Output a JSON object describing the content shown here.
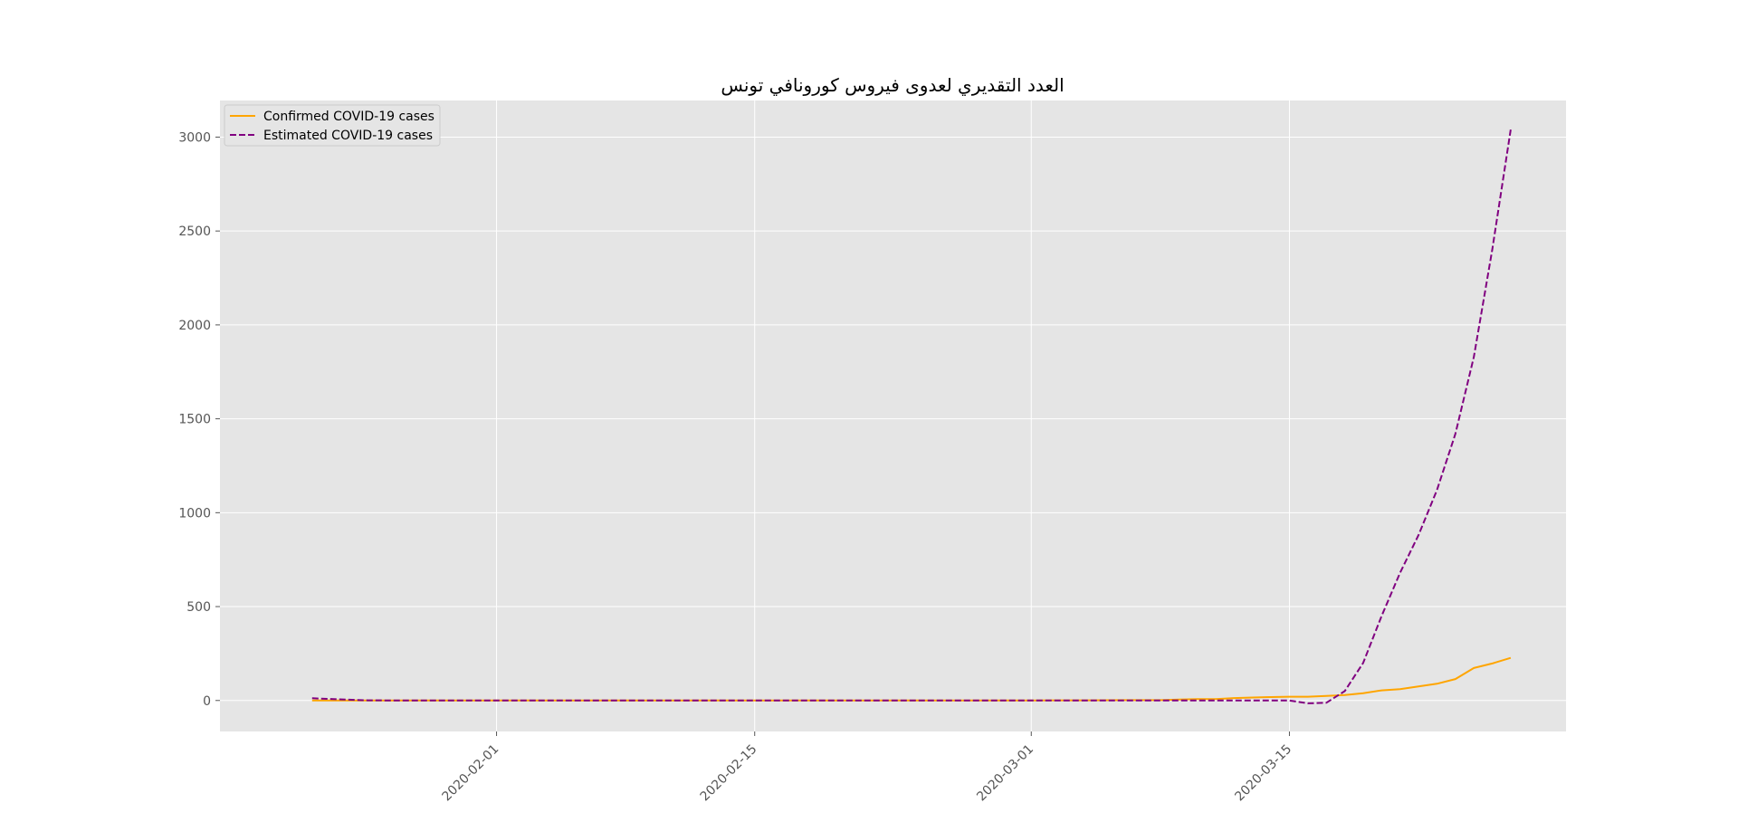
{
  "chart_data": {
    "type": "line",
    "title": "العدد التقديري لعدوى فيروس كورونافي تونس",
    "xlabel": "",
    "ylabel": "",
    "x_range": [
      "2020-01-17",
      "2020-03-30"
    ],
    "ylim": [
      -165,
      3195
    ],
    "x_ticks": [
      "2020-02-01",
      "2020-02-15",
      "2020-03-01",
      "2020-03-15"
    ],
    "y_ticks": [
      0,
      500,
      1000,
      1500,
      2000,
      2500,
      3000
    ],
    "grid": true,
    "legend_position": "top-left",
    "background": "#e5e5e5",
    "series": [
      {
        "name": "Confirmed COVID-19 cases",
        "color": "#ffa500",
        "dash": "solid",
        "points": [
          [
            "2020-01-22",
            0
          ],
          [
            "2020-02-01",
            0
          ],
          [
            "2020-02-15",
            0
          ],
          [
            "2020-03-01",
            0
          ],
          [
            "2020-03-02",
            1
          ],
          [
            "2020-03-04",
            1
          ],
          [
            "2020-03-06",
            2
          ],
          [
            "2020-03-08",
            2
          ],
          [
            "2020-03-09",
            5
          ],
          [
            "2020-03-10",
            7
          ],
          [
            "2020-03-11",
            7
          ],
          [
            "2020-03-12",
            13
          ],
          [
            "2020-03-13",
            16
          ],
          [
            "2020-03-14",
            18
          ],
          [
            "2020-03-15",
            20
          ],
          [
            "2020-03-16",
            20
          ],
          [
            "2020-03-17",
            24
          ],
          [
            "2020-03-18",
            29
          ],
          [
            "2020-03-19",
            39
          ],
          [
            "2020-03-20",
            54
          ],
          [
            "2020-03-21",
            60
          ],
          [
            "2020-03-22",
            75
          ],
          [
            "2020-03-23",
            89
          ],
          [
            "2020-03-24",
            114
          ],
          [
            "2020-03-25",
            173
          ],
          [
            "2020-03-26",
            197
          ],
          [
            "2020-03-27",
            227
          ]
        ]
      },
      {
        "name": "Estimated COVID-19 cases",
        "color": "#800080",
        "dash": "dashed",
        "points": [
          [
            "2020-01-22",
            12
          ],
          [
            "2020-01-23",
            8
          ],
          [
            "2020-01-24",
            4
          ],
          [
            "2020-01-25",
            1
          ],
          [
            "2020-01-27",
            0
          ],
          [
            "2020-02-01",
            0
          ],
          [
            "2020-02-15",
            0
          ],
          [
            "2020-03-01",
            0
          ],
          [
            "2020-03-10",
            0
          ],
          [
            "2020-03-15",
            0
          ],
          [
            "2020-03-16",
            -15
          ],
          [
            "2020-03-17",
            -12
          ],
          [
            "2020-03-18",
            50
          ],
          [
            "2020-03-19",
            200
          ],
          [
            "2020-03-20",
            450
          ],
          [
            "2020-03-21",
            680
          ],
          [
            "2020-03-22",
            880
          ],
          [
            "2020-03-23",
            1120
          ],
          [
            "2020-03-24",
            1420
          ],
          [
            "2020-03-25",
            1830
          ],
          [
            "2020-03-26",
            2400
          ],
          [
            "2020-03-27",
            3040
          ]
        ]
      }
    ]
  }
}
